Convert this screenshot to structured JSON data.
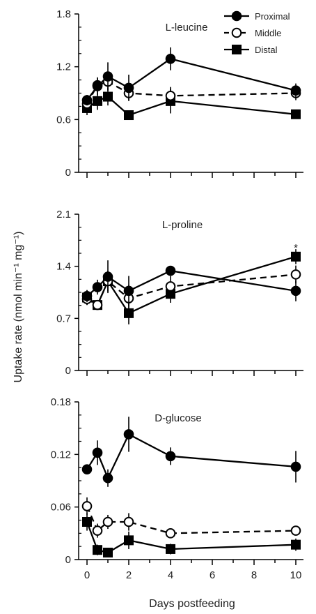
{
  "figure": {
    "ylabel": "Uptake rate (nmol min⁻¹ mg⁻¹)",
    "xlabel": "Days postfeeding"
  },
  "legend": [
    {
      "name": "Proximal",
      "marker": "filled-circle",
      "line": "solid"
    },
    {
      "name": "Middle",
      "marker": "open-circle",
      "line": "dashed"
    },
    {
      "name": "Distal",
      "marker": "filled-square",
      "line": "solid"
    }
  ],
  "chart_data": [
    {
      "type": "line",
      "panel_label": "L-leucine",
      "x": [
        0,
        0.5,
        1,
        2,
        4,
        10
      ],
      "xlim": [
        -0.3,
        10.3
      ],
      "xticks": [
        "0",
        "2",
        "4",
        "6",
        "8",
        "10"
      ],
      "ylim": [
        0,
        1.8
      ],
      "yticks": [
        "0",
        "0.6",
        "1.2",
        "1.8"
      ],
      "legend_position": "top-right",
      "series": [
        {
          "name": "Proximal",
          "values": [
            0.82,
            0.98,
            1.09,
            0.96,
            1.29,
            0.93
          ],
          "errors": [
            0.06,
            0.1,
            0.16,
            0.15,
            0.13,
            0.08
          ]
        },
        {
          "name": "Middle",
          "values": [
            0.78,
            0.99,
            1.03,
            0.9,
            0.87,
            0.9
          ],
          "errors": [
            0.06,
            0.08,
            0.1,
            0.08,
            0.1,
            0.08
          ]
        },
        {
          "name": "Distal",
          "values": [
            0.73,
            0.81,
            0.86,
            0.65,
            0.81,
            0.66
          ],
          "errors": [
            0.08,
            0.1,
            0.1,
            0.03,
            0.14,
            0.05
          ]
        }
      ],
      "annotations": []
    },
    {
      "type": "line",
      "panel_label": "L-proline",
      "x": [
        0,
        0.5,
        1,
        2,
        4,
        10
      ],
      "xlim": [
        -0.3,
        10.3
      ],
      "xticks": [
        "0",
        "2",
        "4",
        "6",
        "8",
        "10"
      ],
      "ylim": [
        0,
        2.1
      ],
      "yticks": [
        "0",
        "0.7",
        "1.4",
        "2.1"
      ],
      "series": [
        {
          "name": "Proximal",
          "values": [
            1.0,
            1.12,
            1.26,
            1.07,
            1.34,
            1.07
          ],
          "errors": [
            0.08,
            0.1,
            0.22,
            0.2,
            0.05,
            0.14
          ]
        },
        {
          "name": "Middle",
          "values": [
            0.96,
            0.88,
            1.2,
            0.97,
            1.13,
            1.29
          ],
          "errors": [
            0.08,
            0.06,
            0.14,
            0.18,
            0.14,
            0.12
          ]
        },
        {
          "name": "Distal",
          "values": [
            0.98,
            0.88,
            1.2,
            0.77,
            1.03,
            1.53
          ],
          "errors": [
            0.1,
            0.06,
            0.14,
            0.15,
            0.12,
            0.1
          ]
        }
      ],
      "annotations": [
        {
          "text": "*",
          "x": 10,
          "y": 1.68
        }
      ]
    },
    {
      "type": "line",
      "panel_label": "D-glucose",
      "x": [
        0,
        0.5,
        1,
        2,
        4,
        10
      ],
      "xlim": [
        -0.3,
        10.3
      ],
      "xticks": [
        "0",
        "2",
        "4",
        "6",
        "8",
        "10"
      ],
      "ylim": [
        0,
        0.18
      ],
      "yticks": [
        "0",
        "0.06",
        "0.12",
        "0.18"
      ],
      "series": [
        {
          "name": "Proximal",
          "values": [
            0.103,
            0.122,
            0.093,
            0.143,
            0.118,
            0.106
          ],
          "errors": [
            0.004,
            0.014,
            0.01,
            0.02,
            0.01,
            0.018
          ]
        },
        {
          "name": "Middle",
          "values": [
            0.061,
            0.033,
            0.043,
            0.043,
            0.03,
            0.033
          ],
          "errors": [
            0.01,
            0.008,
            0.008,
            0.01,
            0.004,
            0.004
          ]
        },
        {
          "name": "Distal",
          "values": [
            0.043,
            0.011,
            0.008,
            0.022,
            0.012,
            0.017
          ],
          "errors": [
            0.01,
            0.006,
            0.005,
            0.01,
            0.006,
            0.007
          ]
        }
      ],
      "annotations": []
    }
  ]
}
